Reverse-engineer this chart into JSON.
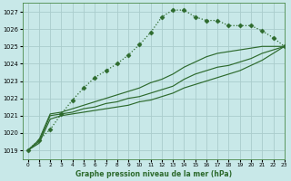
{
  "background_color": "#c8e8e8",
  "grid_color": "#aacccc",
  "line_color": "#2d6a2d",
  "xlabel": "Graphe pression niveau de la mer (hPa)",
  "xlim": [
    -0.5,
    23
  ],
  "ylim": [
    1018.5,
    1027.5
  ],
  "yticks": [
    1019,
    1020,
    1021,
    1022,
    1023,
    1024,
    1025,
    1026,
    1027
  ],
  "xticks": [
    0,
    1,
    2,
    3,
    4,
    5,
    6,
    7,
    8,
    9,
    10,
    11,
    12,
    13,
    14,
    15,
    16,
    17,
    18,
    19,
    20,
    21,
    22,
    23
  ],
  "series": [
    {
      "x": [
        0,
        1,
        2,
        3,
        4,
        5,
        6,
        7,
        8,
        9,
        10,
        11,
        12,
        13,
        14,
        15,
        16,
        17,
        18,
        19,
        20,
        21,
        22,
        23
      ],
      "y": [
        1019.0,
        1019.6,
        1020.2,
        1021.1,
        1021.9,
        1022.6,
        1023.2,
        1023.6,
        1024.0,
        1024.5,
        1025.1,
        1025.8,
        1026.7,
        1027.1,
        1027.1,
        1026.7,
        1026.5,
        1026.5,
        1026.2,
        1026.2,
        1026.2,
        1025.9,
        1025.5,
        1025.0
      ],
      "style": "dotted_marker",
      "marker": "D",
      "markersize": 2.5
    },
    {
      "x": [
        0,
        1,
        2,
        3,
        4,
        5,
        6,
        7,
        8,
        9,
        10,
        11,
        12,
        13,
        14,
        15,
        16,
        17,
        18,
        19,
        20,
        21,
        22,
        23
      ],
      "y": [
        1019.0,
        1019.6,
        1021.1,
        1021.2,
        1021.4,
        1021.6,
        1021.8,
        1022.0,
        1022.2,
        1022.4,
        1022.6,
        1022.9,
        1023.1,
        1023.4,
        1023.8,
        1024.1,
        1024.4,
        1024.6,
        1024.7,
        1024.8,
        1024.9,
        1025.0,
        1025.0,
        1025.0
      ],
      "style": "solid"
    },
    {
      "x": [
        0,
        1,
        2,
        3,
        4,
        5,
        6,
        7,
        8,
        9,
        10,
        11,
        12,
        13,
        14,
        15,
        16,
        17,
        18,
        19,
        20,
        21,
        22,
        23
      ],
      "y": [
        1019.0,
        1019.5,
        1021.0,
        1021.1,
        1021.2,
        1021.4,
        1021.5,
        1021.7,
        1021.8,
        1022.0,
        1022.1,
        1022.3,
        1022.5,
        1022.7,
        1023.1,
        1023.4,
        1023.6,
        1023.8,
        1023.9,
        1024.1,
        1024.3,
        1024.6,
        1024.8,
        1025.0
      ],
      "style": "solid"
    },
    {
      "x": [
        0,
        1,
        2,
        3,
        4,
        5,
        6,
        7,
        8,
        9,
        10,
        11,
        12,
        13,
        14,
        15,
        16,
        17,
        18,
        19,
        20,
        21,
        22,
        23
      ],
      "y": [
        1019.0,
        1019.4,
        1020.8,
        1021.0,
        1021.1,
        1021.2,
        1021.3,
        1021.4,
        1021.5,
        1021.6,
        1021.8,
        1021.9,
        1022.1,
        1022.3,
        1022.6,
        1022.8,
        1023.0,
        1023.2,
        1023.4,
        1023.6,
        1023.9,
        1024.2,
        1024.6,
        1025.0
      ],
      "style": "solid"
    }
  ]
}
